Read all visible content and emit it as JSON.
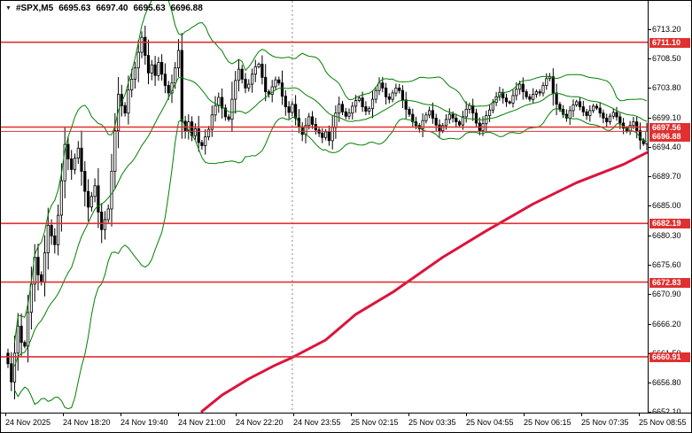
{
  "header": {
    "symbol": "#SPX,M5",
    "open": "6695.63",
    "high": "6697.40",
    "low": "6695.63",
    "close": "6696.88"
  },
  "chart_data": {
    "type": "candlestick",
    "title": "#SPX M5 candlestick chart with Bollinger Bands, long moving average and support/resistance levels",
    "symbol": "#SPX",
    "timeframe": "M5",
    "x_labels": [
      "24 Nov 2025",
      "24 Nov 18:20",
      "24 Nov 19:40",
      "24 Nov 21:00",
      "24 Nov 22:20",
      "24 Nov 23:55",
      "25 Nov 02:15",
      "25 Nov 03:35",
      "25 Nov 04:55",
      "25 Nov 06:15",
      "25 Nov 07:35",
      "25 Nov 08:55"
    ],
    "y_axis": {
      "max": 6717.7,
      "min": 6652.0,
      "grid_labels": [
        6713.2,
        6708.5,
        6703.8,
        6699.1,
        6694.4,
        6689.7,
        6685.0,
        6680.3,
        6675.6,
        6670.9,
        6666.2,
        6661.5,
        6656.8,
        6652.1
      ]
    },
    "levels": [
      6711.1,
      6697.56,
      6682.19,
      6672.83,
      6660.91
    ],
    "bid": 6696.88,
    "day_separator_bar": 85,
    "bollinger": {
      "period": 20,
      "deviation": 2
    },
    "candles": {
      "first_open": 6661.5,
      "closes": [
        6659.8,
        6656.9,
        6661.5,
        6665.8,
        6663.2,
        6662.6,
        6668.0,
        6672.5,
        6676.8,
        6674.0,
        6672.8,
        6677.5,
        6681.9,
        6680.2,
        6678.8,
        6683.5,
        6689.0,
        6694.8,
        6692.5,
        6690.8,
        6692.6,
        6694.2,
        6690.5,
        6687.3,
        6684.8,
        6686.5,
        6688.2,
        6684.0,
        6681.2,
        6682.8,
        6684.5,
        6690.5,
        6697.0,
        6702.8,
        6701.0,
        6699.8,
        6703.5,
        6705.2,
        6707.0,
        6709.5,
        6711.9,
        6709.0,
        6706.2,
        6707.5,
        6705.8,
        6707.9,
        6706.0,
        6704.2,
        6703.0,
        6704.6,
        6707.0,
        6709.8,
        6698.5,
        6697.0,
        6698.4,
        6696.2,
        6697.3,
        6695.1,
        6694.6,
        6696.0,
        6697.2,
        6699.5,
        6701.0,
        6702.3,
        6700.6,
        6699.2,
        6698.8,
        6702.0,
        6705.0,
        6706.8,
        6705.2,
        6703.8,
        6704.4,
        6706.0,
        6707.2,
        6707.6,
        6705.5,
        6703.2,
        6702.8,
        6704.0,
        6705.1,
        6704.6,
        6702.5,
        6700.8,
        6699.9,
        6701.2,
        6699.0,
        6697.6,
        6696.4,
        6697.8,
        6699.2,
        6698.0,
        6697.1,
        6696.6,
        6695.9,
        6696.8,
        6695.4,
        6697.5,
        6699.8,
        6701.2,
        6700.0,
        6699.3,
        6699.8,
        6700.9,
        6701.8,
        6702.2,
        6700.8,
        6700.1,
        6700.5,
        6702.0,
        6703.4,
        6704.6,
        6703.8,
        6702.4,
        6702.0,
        6703.0,
        6703.8,
        6703.4,
        6701.9,
        6700.4,
        6699.6,
        6698.4,
        6697.8,
        6697.3,
        6698.6,
        6699.5,
        6700.2,
        6699.0,
        6697.9,
        6697.0,
        6697.8,
        6698.8,
        6699.6,
        6699.0,
        6698.4,
        6697.9,
        6699.2,
        6700.4,
        6701.0,
        6699.8,
        6698.2,
        6697.0,
        6698.1,
        6699.4,
        6700.3,
        6701.5,
        6702.4,
        6703.1,
        6702.2,
        6701.6,
        6701.4,
        6702.6,
        6703.6,
        6704.4,
        6703.2,
        6702.4,
        6702.0,
        6702.8,
        6703.2,
        6703.0,
        6704.2,
        6705.3,
        6705.6,
        6703.0,
        6701.2,
        6700.4,
        6699.6,
        6699.0,
        6700.2,
        6701.1,
        6701.6,
        6700.8,
        6700.0,
        6699.4,
        6700.2,
        6700.9,
        6700.6,
        6699.8,
        6699.0,
        6698.4,
        6699.3,
        6699.9,
        6699.2,
        6698.2,
        6697.4,
        6696.9,
        6697.8,
        6698.4,
        6697.0,
        6695.5,
        6694.9,
        6696.9
      ]
    },
    "red_ma_points": [
      [
        58,
        6652.2
      ],
      [
        64,
        6654.8
      ],
      [
        72,
        6657.4
      ],
      [
        80,
        6659.6
      ],
      [
        85,
        6660.8
      ],
      [
        95,
        6663.6
      ],
      [
        104,
        6667.7
      ],
      [
        115,
        6671.2
      ],
      [
        130,
        6676.8
      ],
      [
        143,
        6681.0
      ],
      [
        157,
        6685.3
      ],
      [
        170,
        6688.7
      ],
      [
        184,
        6691.6
      ],
      [
        191,
        6693.5
      ]
    ],
    "colors": {
      "background": "#ffffff",
      "border": "#000000",
      "bull": "#ffffff",
      "bear": "#000000",
      "wick": "#000000",
      "bands": "#008000",
      "ma": "#dc143c",
      "level": "#e03030",
      "label_bg": "#e03030",
      "label_text": "#ffffff",
      "separator": "#8a8a8a",
      "axis_text": "#000000"
    }
  }
}
